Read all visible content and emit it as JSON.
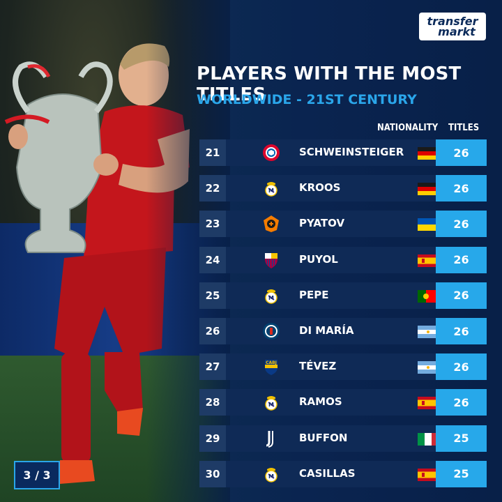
{
  "brand": {
    "line1": "transfer",
    "line2": "markt"
  },
  "header": {
    "title": "PLAYERS WITH THE MOST TITLES",
    "subtitle": "WORLDWIDE - 21ST CENTURY"
  },
  "columns": {
    "nationality": "NATIONALITY",
    "titles": "TITLES"
  },
  "rows": [
    {
      "rank": "21",
      "name": "SCHWEINSTEIGER",
      "club_icon": "bayern-crest-icon",
      "flag": "germany-flag-icon",
      "titles": "26"
    },
    {
      "rank": "22",
      "name": "KROOS",
      "club_icon": "real-madrid-crest-icon",
      "flag": "germany-flag-icon",
      "titles": "26"
    },
    {
      "rank": "23",
      "name": "PYATOV",
      "club_icon": "shakhtar-crest-icon",
      "flag": "ukraine-flag-icon",
      "titles": "26"
    },
    {
      "rank": "24",
      "name": "PUYOL",
      "club_icon": "barcelona-crest-icon",
      "flag": "spain-flag-icon",
      "titles": "26"
    },
    {
      "rank": "25",
      "name": "PEPE",
      "club_icon": "real-madrid-crest-icon",
      "flag": "portugal-flag-icon",
      "titles": "26"
    },
    {
      "rank": "26",
      "name": "DI MARÍA",
      "club_icon": "psg-crest-icon",
      "flag": "argentina-flag-icon",
      "titles": "26"
    },
    {
      "rank": "27",
      "name": "TÉVEZ",
      "club_icon": "boca-juniors-crest-icon",
      "flag": "argentina-flag-icon",
      "titles": "26"
    },
    {
      "rank": "28",
      "name": "RAMOS",
      "club_icon": "real-madrid-crest-icon",
      "flag": "spain-flag-icon",
      "titles": "26"
    },
    {
      "rank": "29",
      "name": "BUFFON",
      "club_icon": "juventus-crest-icon",
      "flag": "italy-flag-icon",
      "titles": "25"
    },
    {
      "rank": "30",
      "name": "CASILLAS",
      "club_icon": "real-madrid-crest-icon",
      "flag": "spain-flag-icon",
      "titles": "25"
    }
  ],
  "pager": {
    "label": "3 / 3"
  },
  "colors": {
    "accent": "#27a8ea",
    "row_bg": "#0f2a56",
    "rank_bg": "#1e3b66"
  }
}
